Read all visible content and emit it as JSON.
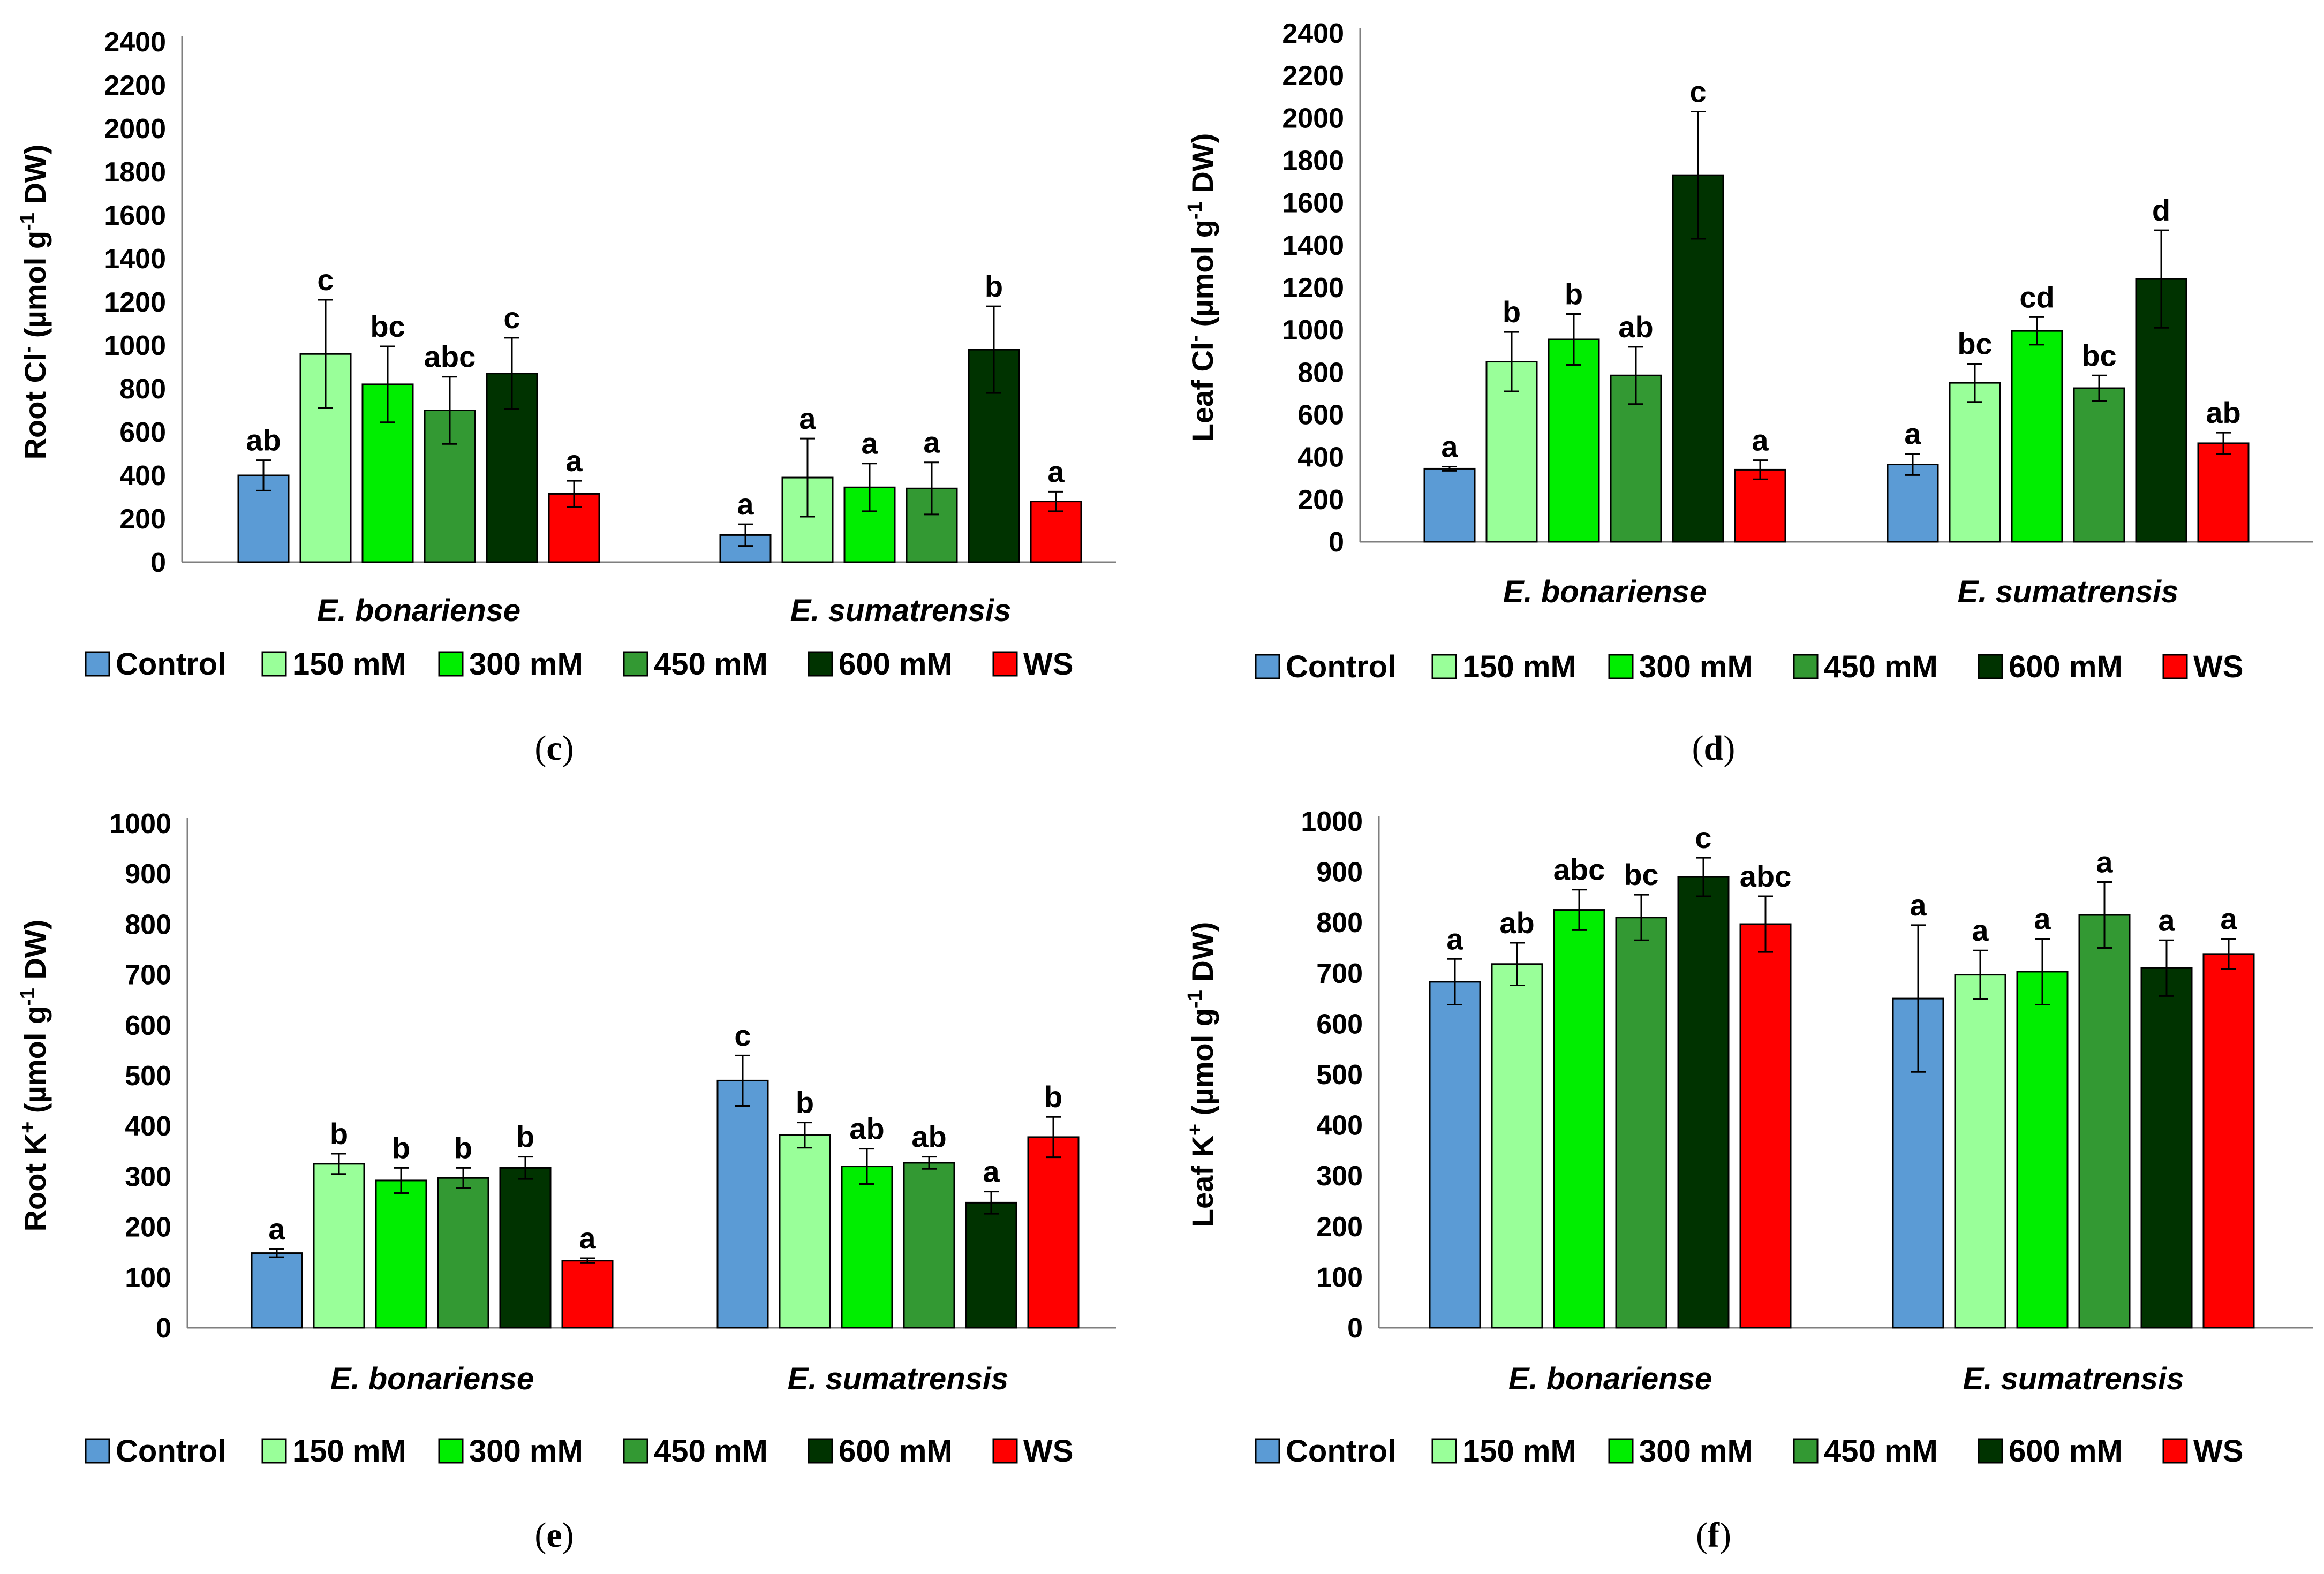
{
  "colors": {
    "Control": "#5b9bd5",
    "150 mM": "#99ff99",
    "300 mM": "#00ee00",
    "450 mM": "#339933",
    "600 mM": "#003300",
    "WS": "#ff0000"
  },
  "legend": [
    "Control",
    "150 mM",
    "300 mM",
    "450 mM",
    "600 mM",
    "WS"
  ],
  "panels": [
    {
      "id": "c",
      "label": "c",
      "chart_data": {
        "type": "bar",
        "ylabel_main": "Root Cl",
        "ylabel_sup": "-",
        "ylabel_unit": "(µmol g",
        "ylabel_unit_sup": "-1",
        "ylabel_end": "DW)",
        "ylim": [
          0,
          2400
        ],
        "yticks": [
          0,
          200,
          400,
          600,
          800,
          1000,
          1200,
          1400,
          1600,
          1800,
          2000,
          2200,
          2400
        ],
        "categories": [
          "E. bonariense",
          "E. sumatrensis"
        ],
        "series": [
          {
            "name": "Control",
            "values": [
              400,
              125
            ],
            "errors": [
              70,
              50
            ],
            "letters": [
              "ab",
              "a"
            ]
          },
          {
            "name": "150 mM",
            "values": [
              960,
              390
            ],
            "errors": [
              250,
              180
            ],
            "letters": [
              "c",
              "a"
            ]
          },
          {
            "name": "300 mM",
            "values": [
              820,
              345
            ],
            "errors": [
              175,
              110
            ],
            "letters": [
              "bc",
              "a"
            ]
          },
          {
            "name": "450 mM",
            "values": [
              700,
              340
            ],
            "errors": [
              155,
              120
            ],
            "letters": [
              "abc",
              "a"
            ]
          },
          {
            "name": "600 mM",
            "values": [
              870,
              980
            ],
            "errors": [
              165,
              200
            ],
            "letters": [
              "c",
              "b"
            ]
          },
          {
            "name": "WS",
            "values": [
              315,
              280
            ],
            "errors": [
              60,
              45
            ],
            "letters": [
              "a",
              "a"
            ]
          }
        ]
      }
    },
    {
      "id": "d",
      "label": "d",
      "chart_data": {
        "type": "bar",
        "ylabel_main": "Leaf Cl",
        "ylabel_sup": "-",
        "ylabel_unit": "(µmol g",
        "ylabel_unit_sup": "-1",
        "ylabel_end": "DW)",
        "ylim": [
          0,
          2400
        ],
        "yticks": [
          0,
          200,
          400,
          600,
          800,
          1000,
          1200,
          1400,
          1600,
          1800,
          2000,
          2200,
          2400
        ],
        "categories": [
          "E. bonariense",
          "E. sumatrensis"
        ],
        "series": [
          {
            "name": "Control",
            "values": [
              345,
              365
            ],
            "errors": [
              10,
              50
            ],
            "letters": [
              "a",
              "a"
            ]
          },
          {
            "name": "150 mM",
            "values": [
              850,
              750
            ],
            "errors": [
              140,
              90
            ],
            "letters": [
              "b",
              "bc"
            ]
          },
          {
            "name": "300 mM",
            "values": [
              955,
              995
            ],
            "errors": [
              120,
              65
            ],
            "letters": [
              "b",
              "cd"
            ]
          },
          {
            "name": "450 mM",
            "values": [
              785,
              725
            ],
            "errors": [
              135,
              60
            ],
            "letters": [
              "ab",
              "bc"
            ]
          },
          {
            "name": "600 mM",
            "values": [
              1730,
              1240
            ],
            "errors": [
              300,
              230
            ],
            "letters": [
              "c",
              "d"
            ]
          },
          {
            "name": "WS",
            "values": [
              340,
              465
            ],
            "errors": [
              45,
              50
            ],
            "letters": [
              "a",
              "ab"
            ]
          }
        ]
      }
    },
    {
      "id": "e",
      "label": "e",
      "chart_data": {
        "type": "bar",
        "ylabel_main": "Root K",
        "ylabel_sup": "+",
        "ylabel_unit": "(µmol g",
        "ylabel_unit_sup": "-1",
        "ylabel_end": "DW)",
        "ylim": [
          0,
          1000
        ],
        "yticks": [
          0,
          100,
          200,
          300,
          400,
          500,
          600,
          700,
          800,
          900,
          1000
        ],
        "categories": [
          "E. bonariense",
          "E. sumatrensis"
        ],
        "series": [
          {
            "name": "Control",
            "values": [
              148,
              490
            ],
            "errors": [
              8,
              50
            ],
            "letters": [
              "a",
              "c"
            ]
          },
          {
            "name": "150 mM",
            "values": [
              325,
              382
            ],
            "errors": [
              20,
              25
            ],
            "letters": [
              "b",
              "b"
            ]
          },
          {
            "name": "300 mM",
            "values": [
              292,
              320
            ],
            "errors": [
              25,
              35
            ],
            "letters": [
              "b",
              "ab"
            ]
          },
          {
            "name": "450 mM",
            "values": [
              297,
              327
            ],
            "errors": [
              20,
              12
            ],
            "letters": [
              "b",
              "ab"
            ]
          },
          {
            "name": "600 mM",
            "values": [
              317,
              248
            ],
            "errors": [
              22,
              22
            ],
            "letters": [
              "b",
              "a"
            ]
          },
          {
            "name": "WS",
            "values": [
              133,
              378
            ],
            "errors": [
              5,
              40
            ],
            "letters": [
              "a",
              "b"
            ]
          }
        ]
      }
    },
    {
      "id": "f",
      "label": "f",
      "chart_data": {
        "type": "bar",
        "ylabel_main": "Leaf K",
        "ylabel_sup": "+",
        "ylabel_unit": "(µmol g",
        "ylabel_unit_sup": "-1",
        "ylabel_end": "DW)",
        "ylim": [
          0,
          1000
        ],
        "yticks": [
          0,
          100,
          200,
          300,
          400,
          500,
          600,
          700,
          800,
          900,
          1000
        ],
        "categories": [
          "E. bonariense",
          "E. sumatrensis"
        ],
        "series": [
          {
            "name": "Control",
            "values": [
              683,
              650
            ],
            "errors": [
              45,
              145
            ],
            "letters": [
              "a",
              "a"
            ]
          },
          {
            "name": "150 mM",
            "values": [
              718,
              697
            ],
            "errors": [
              42,
              48
            ],
            "letters": [
              "ab",
              "a"
            ]
          },
          {
            "name": "300 mM",
            "values": [
              825,
              703
            ],
            "errors": [
              40,
              65
            ],
            "letters": [
              "abc",
              "a"
            ]
          },
          {
            "name": "450 mM",
            "values": [
              810,
              815
            ],
            "errors": [
              45,
              65
            ],
            "letters": [
              "bc",
              "a"
            ]
          },
          {
            "name": "600 mM",
            "values": [
              890,
              710
            ],
            "errors": [
              38,
              55
            ],
            "letters": [
              "c",
              "a"
            ]
          },
          {
            "name": "WS",
            "values": [
              797,
              738
            ],
            "errors": [
              55,
              30
            ],
            "letters": [
              "abc",
              "a"
            ]
          }
        ]
      }
    }
  ]
}
